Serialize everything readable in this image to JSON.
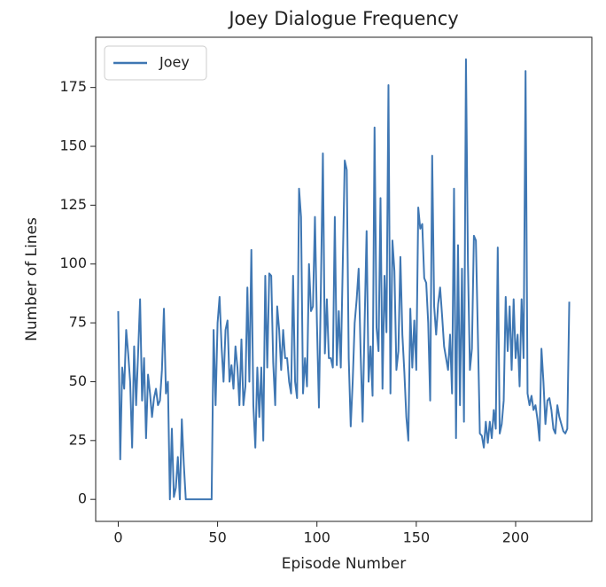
{
  "chart_data": {
    "type": "line",
    "title": "Joey Dialogue Frequency",
    "xlabel": "Episode Number",
    "ylabel": "Number of Lines",
    "x": [
      0,
      1,
      2,
      3,
      4,
      5,
      6,
      7,
      8,
      9,
      10,
      11,
      12,
      13,
      14,
      15,
      16,
      17,
      18,
      19,
      20,
      21,
      22,
      23,
      24,
      25,
      26,
      27,
      28,
      29,
      30,
      31,
      32,
      33,
      34,
      35,
      36,
      37,
      38,
      39,
      40,
      41,
      42,
      43,
      44,
      45,
      46,
      47,
      48,
      49,
      50,
      51,
      52,
      53,
      54,
      55,
      56,
      57,
      58,
      59,
      60,
      61,
      62,
      63,
      64,
      65,
      66,
      67,
      68,
      69,
      70,
      71,
      72,
      73,
      74,
      75,
      76,
      77,
      78,
      79,
      80,
      81,
      82,
      83,
      84,
      85,
      86,
      87,
      88,
      89,
      90,
      91,
      92,
      93,
      94,
      95,
      96,
      97,
      98,
      99,
      100,
      101,
      102,
      103,
      104,
      105,
      106,
      107,
      108,
      109,
      110,
      111,
      112,
      113,
      114,
      115,
      116,
      117,
      118,
      119,
      120,
      121,
      122,
      123,
      124,
      125,
      126,
      127,
      128,
      129,
      130,
      131,
      132,
      133,
      134,
      135,
      136,
      137,
      138,
      139,
      140,
      141,
      142,
      143,
      144,
      145,
      146,
      147,
      148,
      149,
      150,
      151,
      152,
      153,
      154,
      155,
      156,
      157,
      158,
      159,
      160,
      161,
      162,
      163,
      164,
      165,
      166,
      167,
      168,
      169,
      170,
      171,
      172,
      173,
      174,
      175,
      176,
      177,
      178,
      179,
      180,
      181,
      182,
      183,
      184,
      185,
      186,
      187,
      188,
      189,
      190,
      191,
      192,
      193,
      194,
      195,
      196,
      197,
      198,
      199,
      200,
      201,
      202,
      203,
      204,
      205,
      206,
      207,
      208,
      209,
      210,
      211,
      212,
      213,
      214,
      215,
      216,
      217,
      218,
      219,
      220,
      221,
      222,
      223,
      224,
      225,
      226,
      227
    ],
    "series": [
      {
        "name": "Joey",
        "color": "#3f77b3",
        "values": [
          80,
          17,
          56,
          47,
          72,
          62,
          50,
          22,
          65,
          40,
          62,
          85,
          42,
          60,
          26,
          53,
          45,
          35,
          43,
          47,
          40,
          42,
          55,
          81,
          45,
          50,
          0,
          30,
          1,
          5,
          18,
          0,
          34,
          15,
          0,
          0,
          0,
          0,
          0,
          0,
          0,
          0,
          0,
          0,
          0,
          0,
          0,
          0,
          72,
          40,
          75,
          86,
          65,
          50,
          72,
          76,
          50,
          57,
          47,
          65,
          56,
          40,
          68,
          40,
          48,
          90,
          50,
          106,
          40,
          22,
          56,
          35,
          56,
          25,
          95,
          56,
          96,
          95,
          58,
          40,
          82,
          72,
          55,
          72,
          60,
          60,
          50,
          45,
          95,
          50,
          43,
          132,
          120,
          45,
          60,
          48,
          100,
          80,
          82,
          120,
          75,
          39,
          90,
          147,
          62,
          85,
          60,
          60,
          56,
          120,
          57,
          80,
          56,
          100,
          144,
          140,
          60,
          31,
          50,
          75,
          85,
          98,
          62,
          33,
          75,
          114,
          50,
          65,
          44,
          158,
          73,
          63,
          128,
          47,
          95,
          71,
          176,
          45,
          110,
          97,
          55,
          63,
          103,
          70,
          54,
          35,
          25,
          81,
          56,
          76,
          55,
          124,
          115,
          117,
          94,
          92,
          75,
          42,
          146,
          82,
          70,
          83,
          90,
          78,
          65,
          60,
          55,
          70,
          45,
          132,
          26,
          108,
          40,
          98,
          33,
          187,
          100,
          55,
          64,
          112,
          110,
          70,
          28,
          27,
          22,
          33,
          24,
          33,
          26,
          38,
          30,
          107,
          28,
          32,
          42,
          86,
          63,
          82,
          55,
          85,
          60,
          70,
          48,
          85,
          60,
          182,
          45,
          40,
          44,
          38,
          40,
          34,
          25,
          64,
          50,
          32,
          42,
          43,
          38,
          30,
          28,
          40,
          35,
          32,
          29,
          28,
          30,
          84
        ]
      }
    ],
    "xlim": [
      -11.35,
      238.35
    ],
    "ylim": [
      -9.35,
      196.35
    ],
    "xticks": [
      0,
      50,
      100,
      150,
      200
    ],
    "yticks": [
      0,
      25,
      50,
      75,
      100,
      125,
      150,
      175
    ],
    "legend": "upper left"
  }
}
